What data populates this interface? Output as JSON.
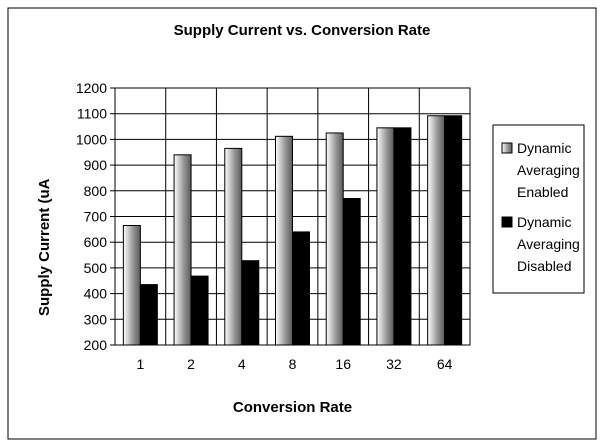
{
  "chart_data": {
    "type": "bar",
    "title": "Supply Current vs. Conversion Rate",
    "xlabel": "Conversion Rate",
    "ylabel": "Supply Current (uA",
    "categories": [
      "1",
      "2",
      "4",
      "8",
      "16",
      "32",
      "64"
    ],
    "ylim": [
      200,
      1200
    ],
    "yticks": [
      200,
      300,
      400,
      500,
      600,
      700,
      800,
      900,
      1000,
      1100,
      1200
    ],
    "grid": true,
    "legend_position": "right",
    "series": [
      {
        "name": "Dynamic Averaging Enabled",
        "legend_lines": [
          "Dynamic",
          "Averaging",
          "Enabled"
        ],
        "fill": "gradient-gray",
        "values": [
          665,
          940,
          965,
          1012,
          1025,
          1045,
          1092
        ]
      },
      {
        "name": "Dynamic Averaging Disabled",
        "legend_lines": [
          "Dynamic",
          "Averaging",
          "Disabled"
        ],
        "fill": "#000000",
        "values": [
          435,
          468,
          528,
          640,
          770,
          1045,
          1092
        ]
      }
    ]
  }
}
